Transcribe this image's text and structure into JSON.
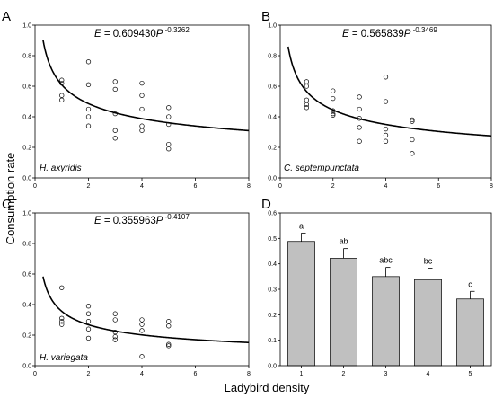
{
  "figure": {
    "ylabel": "Consumption rate",
    "xlabel": "Ladybird density"
  },
  "chart_data": [
    {
      "panel": "A",
      "type": "scatter",
      "species": "H. axyridis",
      "equation": {
        "lhs": "E",
        "equals": " = ",
        "coef": "0.609430",
        "var": "P",
        "exp": " -0.3262"
      },
      "fit": {
        "a": 0.60943,
        "b": -0.3262
      },
      "xlim": [
        0,
        8
      ],
      "ylim": [
        0,
        1.0
      ],
      "xticks": [
        "0",
        "2",
        "4",
        "6",
        "8"
      ],
      "yticks": [
        "0.0",
        "0.2",
        "0.4",
        "0.6",
        "0.8",
        "1.0"
      ],
      "points": [
        {
          "x": 1,
          "y": 0.64
        },
        {
          "x": 1,
          "y": 0.62
        },
        {
          "x": 1,
          "y": 0.54
        },
        {
          "x": 1,
          "y": 0.51
        },
        {
          "x": 2,
          "y": 0.76
        },
        {
          "x": 2,
          "y": 0.61
        },
        {
          "x": 2,
          "y": 0.45
        },
        {
          "x": 2,
          "y": 0.4
        },
        {
          "x": 2,
          "y": 0.34
        },
        {
          "x": 3,
          "y": 0.63
        },
        {
          "x": 3,
          "y": 0.58
        },
        {
          "x": 3,
          "y": 0.42
        },
        {
          "x": 3,
          "y": 0.31
        },
        {
          "x": 3,
          "y": 0.26
        },
        {
          "x": 4,
          "y": 0.62
        },
        {
          "x": 4,
          "y": 0.54
        },
        {
          "x": 4,
          "y": 0.45
        },
        {
          "x": 4,
          "y": 0.34
        },
        {
          "x": 4,
          "y": 0.31
        },
        {
          "x": 5,
          "y": 0.46
        },
        {
          "x": 5,
          "y": 0.4
        },
        {
          "x": 5,
          "y": 0.35
        },
        {
          "x": 5,
          "y": 0.22
        },
        {
          "x": 5,
          "y": 0.19
        }
      ]
    },
    {
      "panel": "B",
      "type": "scatter",
      "species": "C. septempunctata",
      "equation": {
        "lhs": "E",
        "equals": " = ",
        "coef": "0.565839",
        "var": "P",
        "exp": " -0.3469"
      },
      "fit": {
        "a": 0.565839,
        "b": -0.3469
      },
      "xlim": [
        0,
        8
      ],
      "ylim": [
        0,
        1.0
      ],
      "xticks": [
        "0",
        "2",
        "4",
        "6",
        "8"
      ],
      "yticks": [
        "0.0",
        "0.2",
        "0.4",
        "0.6",
        "0.8",
        "1.0"
      ],
      "points": [
        {
          "x": 1,
          "y": 0.63
        },
        {
          "x": 1,
          "y": 0.6
        },
        {
          "x": 1,
          "y": 0.51
        },
        {
          "x": 1,
          "y": 0.48
        },
        {
          "x": 1,
          "y": 0.46
        },
        {
          "x": 2,
          "y": 0.57
        },
        {
          "x": 2,
          "y": 0.52
        },
        {
          "x": 2,
          "y": 0.44
        },
        {
          "x": 2,
          "y": 0.42
        },
        {
          "x": 2,
          "y": 0.41
        },
        {
          "x": 3,
          "y": 0.53
        },
        {
          "x": 3,
          "y": 0.45
        },
        {
          "x": 3,
          "y": 0.39
        },
        {
          "x": 3,
          "y": 0.33
        },
        {
          "x": 3,
          "y": 0.24
        },
        {
          "x": 4,
          "y": 0.66
        },
        {
          "x": 4,
          "y": 0.5
        },
        {
          "x": 4,
          "y": 0.32
        },
        {
          "x": 4,
          "y": 0.28
        },
        {
          "x": 4,
          "y": 0.24
        },
        {
          "x": 5,
          "y": 0.38
        },
        {
          "x": 5,
          "y": 0.37
        },
        {
          "x": 5,
          "y": 0.25
        },
        {
          "x": 5,
          "y": 0.16
        }
      ]
    },
    {
      "panel": "C",
      "type": "scatter",
      "species": "H. variegata",
      "equation": {
        "lhs": "E",
        "equals": " = ",
        "coef": "0.355963",
        "var": "P",
        "exp": " -0.4107"
      },
      "fit": {
        "a": 0.355963,
        "b": -0.4107
      },
      "xlim": [
        0,
        8
      ],
      "ylim": [
        0,
        1.0
      ],
      "xticks": [
        "0",
        "2",
        "4",
        "6",
        "8"
      ],
      "yticks": [
        "0.0",
        "0.2",
        "0.4",
        "0.6",
        "0.8",
        "1.0"
      ],
      "points": [
        {
          "x": 1,
          "y": 0.51
        },
        {
          "x": 1,
          "y": 0.31
        },
        {
          "x": 1,
          "y": 0.29
        },
        {
          "x": 1,
          "y": 0.27
        },
        {
          "x": 2,
          "y": 0.39
        },
        {
          "x": 2,
          "y": 0.34
        },
        {
          "x": 2,
          "y": 0.29
        },
        {
          "x": 2,
          "y": 0.24
        },
        {
          "x": 2,
          "y": 0.18
        },
        {
          "x": 3,
          "y": 0.34
        },
        {
          "x": 3,
          "y": 0.3
        },
        {
          "x": 3,
          "y": 0.22
        },
        {
          "x": 3,
          "y": 0.19
        },
        {
          "x": 3,
          "y": 0.17
        },
        {
          "x": 4,
          "y": 0.3
        },
        {
          "x": 4,
          "y": 0.27
        },
        {
          "x": 4,
          "y": 0.23
        },
        {
          "x": 4,
          "y": 0.06
        },
        {
          "x": 5,
          "y": 0.29
        },
        {
          "x": 5,
          "y": 0.26
        },
        {
          "x": 5,
          "y": 0.14
        },
        {
          "x": 5,
          "y": 0.13
        }
      ]
    },
    {
      "panel": "D",
      "type": "bar",
      "categories": [
        "1",
        "2",
        "3",
        "4",
        "5"
      ],
      "values": [
        0.488,
        0.422,
        0.35,
        0.338,
        0.262
      ],
      "errors": [
        0.033,
        0.038,
        0.036,
        0.045,
        0.03
      ],
      "letters": [
        "a",
        "ab",
        "abc",
        "bc",
        "c"
      ],
      "ylim": [
        0,
        0.6
      ],
      "yticks": [
        "0.0",
        "0.1",
        "0.2",
        "0.3",
        "0.4",
        "0.5",
        "0.6"
      ],
      "bar_color": "#c0c0c0"
    }
  ]
}
